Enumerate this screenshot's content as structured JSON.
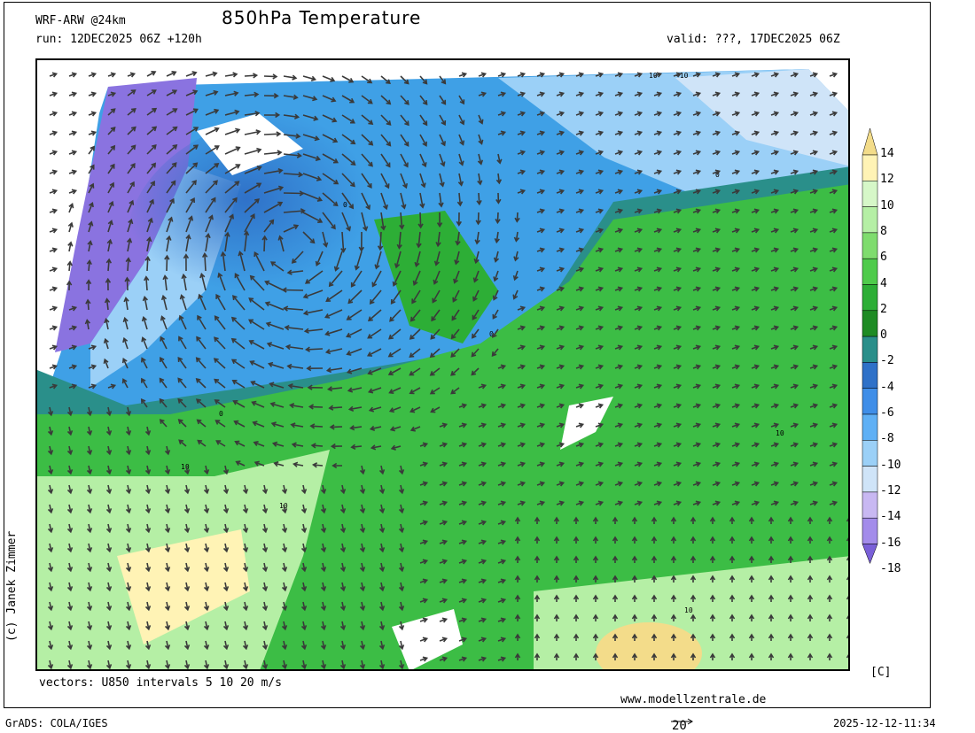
{
  "header": {
    "model": "WRF-ARW @24km",
    "title": "850hPa Temperature",
    "run": "run: 12DEC2025 06Z +120h",
    "valid": "valid: ???, 17DEC2025 06Z"
  },
  "colorbar": {
    "unit": "[C]",
    "ticks": [
      "14",
      "12",
      "10",
      "8",
      "6",
      "4",
      "2",
      "0",
      "-2",
      "-4",
      "-6",
      "-8",
      "-10",
      "-12",
      "-14",
      "-16",
      "-18"
    ],
    "colors": [
      "#f3dc8a",
      "#fff3b5",
      "#d6f7c8",
      "#b5efa5",
      "#7fdc6e",
      "#4fcb4b",
      "#2dae36",
      "#1e8b24",
      "#2a8f8a",
      "#2f71c8",
      "#3f8ee8",
      "#5fb0f5",
      "#9bd0f7",
      "#cfe4f8",
      "#c8b8f2",
      "#a38cea",
      "#7a60d8"
    ]
  },
  "map": {
    "contour_labels": [
      "0",
      "0",
      "0",
      "0",
      "10",
      "10",
      "10",
      "10",
      "10",
      "-10"
    ]
  },
  "footer": {
    "vectors": "vectors: U850 intervals 5 10 20 m/s",
    "website": "www.modellzentrale.de",
    "grads": "GrADS: COLA/IGES",
    "arrow_ref": "20",
    "timestamp": "2025-12-12-11:34",
    "credit": "(c) Janek Zimmer"
  }
}
